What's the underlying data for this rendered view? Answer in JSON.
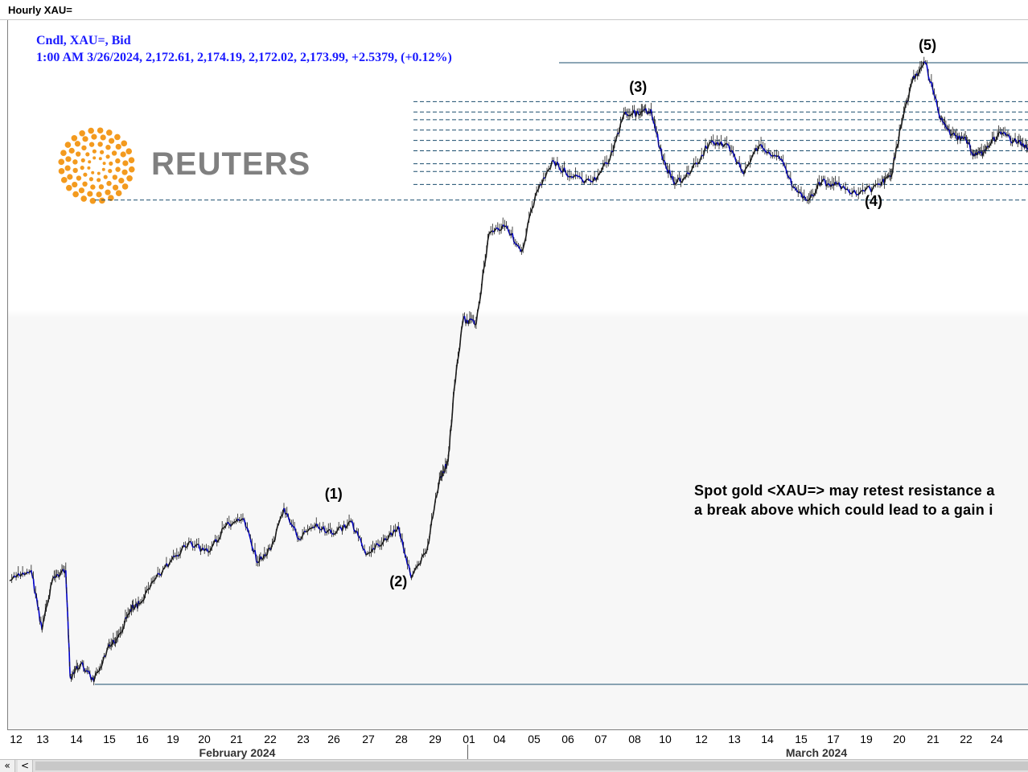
{
  "window": {
    "title": "Hourly XAU="
  },
  "legend": {
    "line1": "Cndl, XAU=, Bid",
    "line2": "1:00 AM 3/26/2024, 2,172.61, 2,174.19, 2,172.02, 2,173.99, +2.5379, (+0.12%)"
  },
  "logo": {
    "text": "REUTERS"
  },
  "annotation": {
    "line1": "Spot gold <XAU=> may retest resistance a",
    "line2": "a break above which could lead to a gain i"
  },
  "scrollbar": {
    "first_label": "«",
    "prev_label": "<"
  },
  "chart_data": {
    "type": "line",
    "title": "Hourly XAU=",
    "series": [
      {
        "values": [
          [
            0,
            2022
          ],
          [
            1,
            2026
          ],
          [
            1.5,
            2003
          ],
          [
            2,
            2023
          ],
          [
            2.6,
            2026
          ],
          [
            2.8,
            1985
          ],
          [
            3.3,
            1990
          ],
          [
            3.9,
            1983
          ],
          [
            4.5,
            1995
          ],
          [
            5,
            2000
          ],
          [
            5.6,
            2011
          ],
          [
            6,
            2013
          ],
          [
            6.7,
            2022
          ],
          [
            7.5,
            2030
          ],
          [
            8.3,
            2037
          ],
          [
            9.2,
            2033
          ],
          [
            10,
            2043
          ],
          [
            10.8,
            2046
          ],
          [
            11.5,
            2029
          ],
          [
            12.1,
            2034
          ],
          [
            12.7,
            2050
          ],
          [
            13.4,
            2038
          ],
          [
            14.2,
            2044
          ],
          [
            15,
            2040
          ],
          [
            15.8,
            2045
          ],
          [
            16.5,
            2032
          ],
          [
            17.3,
            2037
          ],
          [
            18,
            2043
          ],
          [
            18.6,
            2023
          ],
          [
            19.3,
            2033
          ],
          [
            19.9,
            2061
          ],
          [
            20.3,
            2068
          ],
          [
            20.6,
            2097
          ],
          [
            21,
            2123
          ],
          [
            21.6,
            2121
          ],
          [
            22.2,
            2156
          ],
          [
            23,
            2159
          ],
          [
            23.7,
            2149
          ],
          [
            24.4,
            2172
          ],
          [
            25.2,
            2184
          ],
          [
            26,
            2178
          ],
          [
            27,
            2176
          ],
          [
            27.8,
            2185
          ],
          [
            28.5,
            2203
          ],
          [
            29.2,
            2202
          ],
          [
            29.7,
            2204
          ],
          [
            30.2,
            2186
          ],
          [
            30.8,
            2175
          ],
          [
            31.5,
            2179
          ],
          [
            32.4,
            2191
          ],
          [
            33.3,
            2190
          ],
          [
            34,
            2179
          ],
          [
            34.7,
            2190
          ],
          [
            35.6,
            2186
          ],
          [
            36.3,
            2174
          ],
          [
            37,
            2169
          ],
          [
            37.6,
            2176
          ],
          [
            38.3,
            2175
          ],
          [
            39.3,
            2171
          ],
          [
            40.3,
            2175
          ],
          [
            40.8,
            2178
          ],
          [
            41.3,
            2198
          ],
          [
            41.8,
            2215
          ],
          [
            42.4,
            2222
          ],
          [
            43.1,
            2200
          ],
          [
            43.6,
            2194
          ],
          [
            44.2,
            2193
          ],
          [
            44.7,
            2186
          ],
          [
            45.2,
            2188
          ],
          [
            45.8,
            2195
          ],
          [
            46.5,
            2192
          ],
          [
            47.1,
            2189
          ],
          [
            47.6,
            2188
          ]
        ]
      }
    ],
    "wave_labels": [
      {
        "label": "(1)",
        "x": 15.0,
        "y": 2052
      },
      {
        "label": "(2)",
        "x": 18.0,
        "y": 2018
      },
      {
        "label": "(3)",
        "x": 29.1,
        "y": 2209
      },
      {
        "label": "(4)",
        "x": 40.0,
        "y": 2165
      },
      {
        "label": "(5)",
        "x": 42.5,
        "y": 2225
      }
    ],
    "dashed_levels": [
      2207,
      2203,
      2200,
      2196,
      2192,
      2188,
      2183,
      2180,
      2175,
      2169
    ],
    "solid_levels": [
      2222,
      1982
    ],
    "x_ticks": [
      {
        "x": 0.2,
        "label": "12"
      },
      {
        "x": 1.2,
        "label": "13"
      },
      {
        "x": 2.2,
        "label": "14"
      },
      {
        "x": 3.2,
        "label": "15"
      },
      {
        "x": 4.2,
        "label": "16"
      },
      {
        "x": 5.2,
        "label": "19"
      },
      {
        "x": 6.2,
        "label": "20"
      },
      {
        "x": 7.2,
        "label": "21"
      },
      {
        "x": 8.2,
        "label": "22"
      },
      {
        "x": 9.2,
        "label": "23"
      },
      {
        "x": 10.2,
        "label": "26"
      },
      {
        "x": 11.2,
        "label": "27"
      },
      {
        "x": 12.2,
        "label": "28"
      },
      {
        "x": 13.2,
        "label": "29"
      },
      {
        "x": 14.2,
        "label": "01"
      },
      {
        "x": 15.2,
        "label": "04"
      },
      {
        "x": 16.2,
        "label": "05"
      },
      {
        "x": 17.2,
        "label": "06"
      },
      {
        "x": 18.2,
        "label": "07"
      },
      {
        "x": 19.2,
        "label": "08"
      },
      {
        "x": 20.2,
        "label": "10"
      },
      {
        "x": 21.2,
        "label": "12"
      },
      {
        "x": 22.2,
        "label": "13"
      },
      {
        "x": 23.2,
        "label": "14"
      },
      {
        "x": 24.2,
        "label": "15"
      },
      {
        "x": 25.2,
        "label": "17"
      },
      {
        "x": 26.2,
        "label": "19"
      },
      {
        "x": 27.2,
        "label": "20"
      },
      {
        "x": 28.2,
        "label": "21"
      },
      {
        "x": 29.2,
        "label": "22"
      },
      {
        "x": 30.2,
        "label": "24"
      }
    ],
    "month_labels": [
      {
        "x": 7.0,
        "label": "February 2024"
      },
      {
        "x": 24.6,
        "label": "March 2024"
      }
    ],
    "colors": {
      "up": "#1a1a1a",
      "down": "#0000cc",
      "dashed": "#1a4d6e"
    },
    "grid": false
  }
}
